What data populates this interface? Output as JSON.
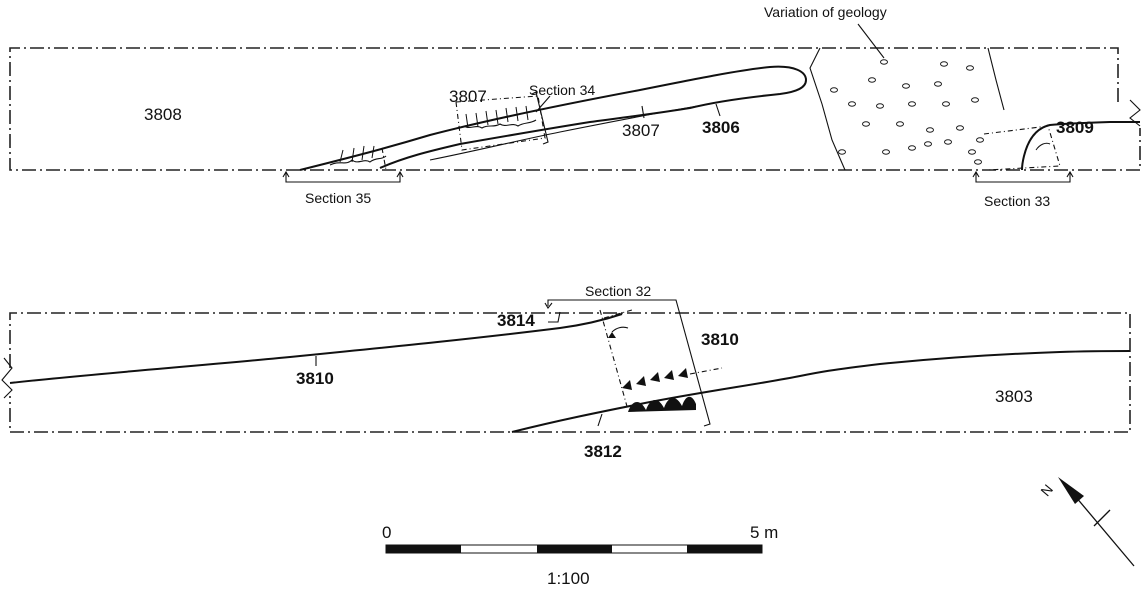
{
  "labels": {
    "geology_note": "Variation of geology",
    "ctx_3808": "3808",
    "ctx_3807_a": "3807",
    "ctx_3807_b": "3807",
    "ctx_3806": "3806",
    "ctx_3809": "3809",
    "ctx_3814": "3814",
    "ctx_3810_a": "3810",
    "ctx_3810_b": "3810",
    "ctx_3812": "3812",
    "ctx_3803": "3803"
  },
  "sections": {
    "s32": "Section 32",
    "s33": "Section 33",
    "s34": "Section 34",
    "s35": "Section 35"
  },
  "north": {
    "label": "N"
  },
  "scale_bar": {
    "start_label": "0",
    "end_label": "5 m",
    "ratio": "1:100"
  }
}
